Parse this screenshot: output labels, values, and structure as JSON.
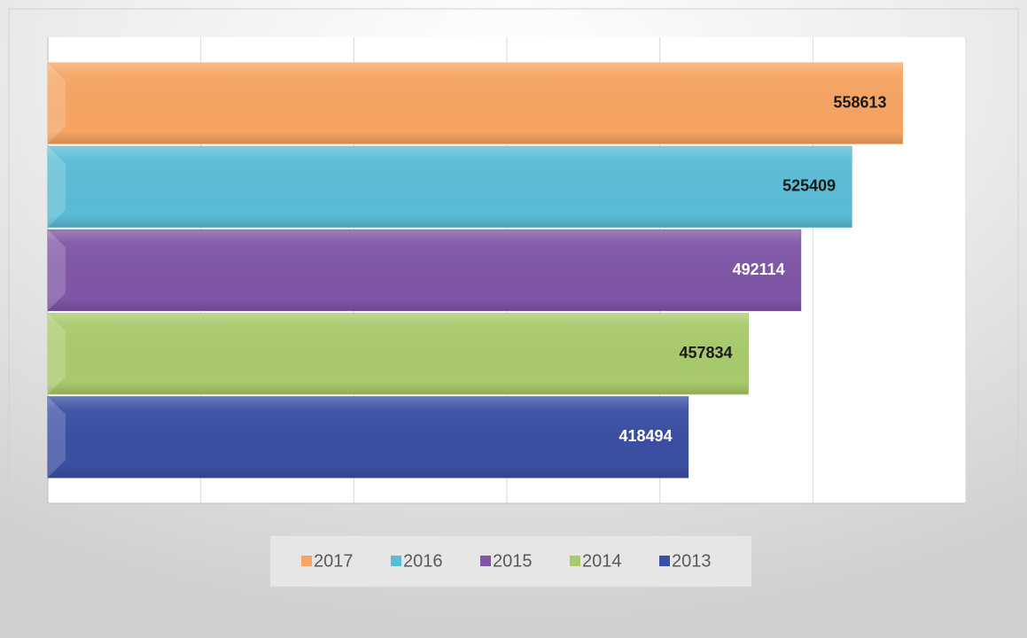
{
  "chart_data": {
    "type": "hbar",
    "categories": [
      "2017",
      "2016",
      "2015",
      "2014",
      "2013"
    ],
    "values": [
      558613,
      525409,
      492114,
      457834,
      418494
    ],
    "colors": [
      "#f6a462",
      "#5bbcd6",
      "#7f56a6",
      "#a9ca6c",
      "#3a4ea3"
    ],
    "value_label_colors": [
      "#1a1a1a",
      "#1a1a1a",
      "#ffffff",
      "#1a1a1a",
      "#ffffff"
    ],
    "xlim": [
      0,
      600000
    ],
    "xticks": [
      0,
      100000,
      200000,
      300000,
      400000,
      500000,
      600000
    ],
    "grid": true,
    "legend": "bottom"
  }
}
